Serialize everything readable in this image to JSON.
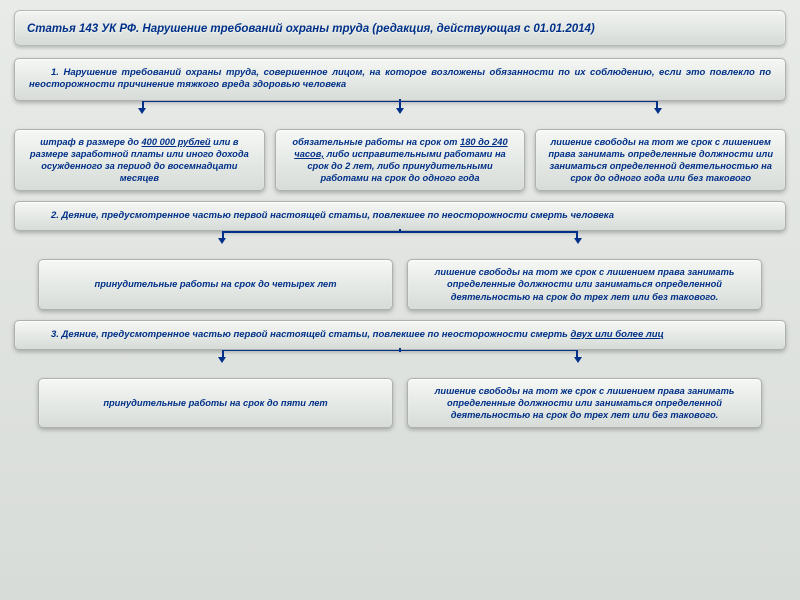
{
  "title": "Статья 143 УК РФ. Нарушение требований охраны труда (редакция, действующая с 01.01.2014)",
  "colors": {
    "text": "#003088",
    "box_gradient_top": "#f5f7f5",
    "box_gradient_bottom": "#d8dcd8",
    "connector": "#003088",
    "page_bg_top": "#e8ebe8",
    "page_bg_bottom": "#d8dcd8",
    "border": "#aeb2ae"
  },
  "typography": {
    "title_fontsize": 11.5,
    "body_fontsize": 9.3,
    "font_family": "Arial",
    "style": "bold italic"
  },
  "sections": [
    {
      "main": "1. Нарушение требований охраны труда, совершенное лицом, на которое возложены обязанности по их соблюдению, если это повлекло по неосторожности причинение тяжкого вреда здоровью человека",
      "children_layout": "row3",
      "children": [
        "штраф в размере до <u>400 000 рублей</u> или в размере заработной платы или иного дохода осужденного за период до восемнадцати месяцев",
        "обязательные работы на срок от <u>180 до 240 часов,</u> либо исправительными работами на срок до 2 лет, либо принудительными работами на срок до одного года",
        "лишение свободы на тот же срок с лишением права занимать определенные должности или заниматься определенной деятельностью на срок до одного года или без такового"
      ]
    },
    {
      "main": "2. Деяние, предусмотренное частью первой настоящей статьи, повлекшее по неосторожности смерть человека",
      "children_layout": "row2",
      "children": [
        "принудительные работы на срок до четырех лет",
        "лишение свободы на тот же срок с лишением права занимать определенные должности или заниматься определенной деятельностью на срок до трех лет или без такового."
      ]
    },
    {
      "main": "3. Деяние, предусмотренное частью первой настоящей статьи, повлекшее по неосторожности смерть <u>двух или более лиц</u>",
      "children_layout": "row2",
      "children": [
        "принудительные работы на срок до пяти лет",
        "лишение свободы на тот же срок с лишением права занимать определенные должности или заниматься определенной деятельностью на срок до трех лет или без такового."
      ]
    }
  ]
}
